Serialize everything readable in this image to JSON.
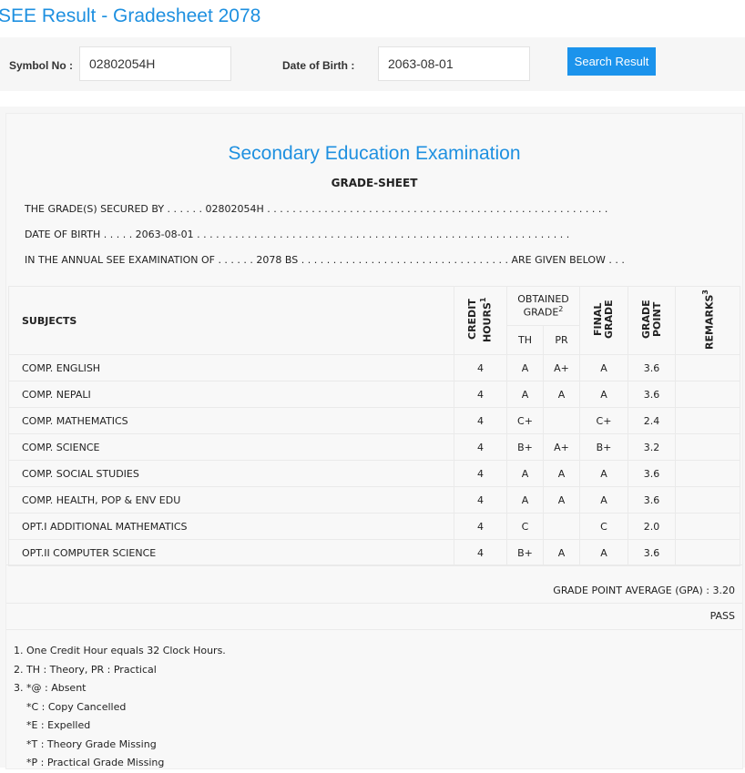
{
  "title": "SEE Result - Gradesheet 2078",
  "search": {
    "symbol_label": "Symbol No :",
    "symbol_value": "02802054H",
    "dob_label": "Date of Birth :",
    "dob_value": "2063-08-01",
    "button": "Search Result"
  },
  "sheet": {
    "heading": "Secondary Education Examination",
    "subheading": "GRADE-SHEET",
    "line1": "THE GRADE(S) SECURED BY . . . . . . 02802054H . . . . . . . . . . . . . . . . . . . . . . . . . . . . . . . . . . . . . . . . . . . . . . . . . . . . . .",
    "line2": "DATE OF BIRTH . . . . . 2063-08-01 . . . . . . . . . . . . . . . . . . . . . . . . . . . . . . . . . . . . . . . . . . . . . . . . . . . . . . . . . . .",
    "line3": "IN THE ANNUAL SEE EXAMINATION OF . . . . . . 2078 BS . . . . . . . . . . . . . . . . . . . . . . . . . . . . . . . . . ARE GIVEN BELOW . . .",
    "headers": {
      "subjects": "SUBJECTS",
      "credit": "CREDIT HOURS",
      "credit_sup": "1",
      "obtained": "OBTAINED GRADE",
      "obtained_sup": "2",
      "th": "TH",
      "pr": "PR",
      "final": "FINAL GRADE",
      "gp": "GRADE POINT",
      "remarks": "REMARKS",
      "remarks_sup": "3"
    },
    "rows": [
      {
        "subject": "COMP. ENGLISH",
        "credit": "4",
        "th": "A",
        "pr": "A+",
        "final": "A",
        "gp": "3.6"
      },
      {
        "subject": "COMP. NEPALI",
        "credit": "4",
        "th": "A",
        "pr": "A",
        "final": "A",
        "gp": "3.6"
      },
      {
        "subject": "COMP. MATHEMATICS",
        "credit": "4",
        "th": "C+",
        "pr": "",
        "final": "C+",
        "gp": "2.4"
      },
      {
        "subject": "COMP. SCIENCE",
        "credit": "4",
        "th": "B+",
        "pr": "A+",
        "final": "B+",
        "gp": "3.2"
      },
      {
        "subject": "COMP. SOCIAL STUDIES",
        "credit": "4",
        "th": "A",
        "pr": "A",
        "final": "A",
        "gp": "3.6"
      },
      {
        "subject": "COMP. HEALTH, POP & ENV EDU",
        "credit": "4",
        "th": "A",
        "pr": "A",
        "final": "A",
        "gp": "3.6"
      },
      {
        "subject": "OPT.I ADDITIONAL MATHEMATICS",
        "credit": "4",
        "th": "C",
        "pr": "",
        "final": "C",
        "gp": "2.0"
      },
      {
        "subject": "OPT.II COMPUTER SCIENCE",
        "credit": "4",
        "th": "B+",
        "pr": "A",
        "final": "A",
        "gp": "3.6"
      }
    ],
    "gpa": "GRADE POINT AVERAGE (GPA) : 3.20",
    "result": "PASS",
    "notes": [
      "1. One Credit Hour equals 32 Clock Hours.",
      "2. TH : Theory, PR : Practical",
      "3. *@ : Absent",
      "    *C : Copy Cancelled",
      "    *E : Expelled",
      "    *T : Theory Grade Missing",
      "    *P : Practical Grade Missing"
    ]
  }
}
